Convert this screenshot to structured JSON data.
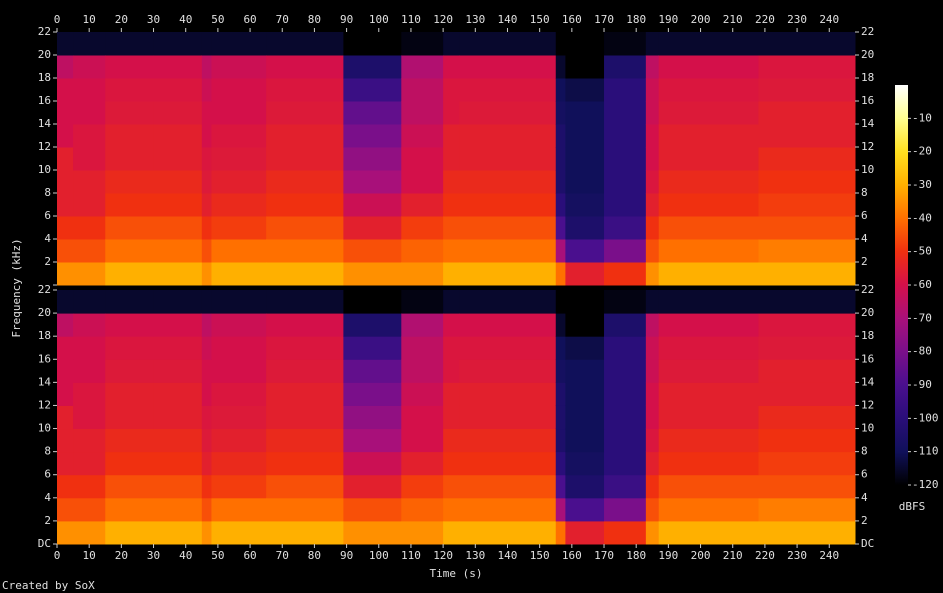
{
  "chart_data": {
    "type": "spectrogram",
    "xlabel": "Time (s)",
    "ylabel": "Frequency (kHz)",
    "zlabel": "dBFS",
    "footer": "Created by SoX",
    "xlim": [
      0,
      248
    ],
    "xticks": [
      0,
      10,
      20,
      30,
      40,
      50,
      60,
      70,
      80,
      90,
      100,
      110,
      120,
      130,
      140,
      150,
      160,
      170,
      180,
      190,
      200,
      210,
      220,
      230,
      240
    ],
    "ylim": [
      0,
      22
    ],
    "yticks": [
      {
        "value": 0,
        "label": "DC"
      },
      2,
      4,
      6,
      8,
      10,
      12,
      14,
      16,
      18,
      20,
      22
    ],
    "zlim": [
      -120,
      0
    ],
    "zticks": [
      -10,
      -20,
      -30,
      -40,
      -50,
      -60,
      -70,
      -80,
      -90,
      -100,
      -110,
      -120
    ],
    "colorscale": [
      {
        "value": -120,
        "color": "#000000"
      },
      {
        "value": -110,
        "color": "#10105a"
      },
      {
        "value": -100,
        "color": "#2a0e7a"
      },
      {
        "value": -90,
        "color": "#4a0f8e"
      },
      {
        "value": -80,
        "color": "#7a0f8a"
      },
      {
        "value": -70,
        "color": "#a8107a"
      },
      {
        "value": -60,
        "color": "#d4104a"
      },
      {
        "value": -50,
        "color": "#f03010"
      },
      {
        "value": -40,
        "color": "#ff7000"
      },
      {
        "value": -30,
        "color": "#ffb000"
      },
      {
        "value": -20,
        "color": "#ffe020"
      },
      {
        "value": -10,
        "color": "#ffff90"
      },
      {
        "value": 0,
        "color": "#ffffff"
      }
    ],
    "time_edges": [
      0,
      5,
      15,
      30,
      45,
      48,
      65,
      89,
      107,
      120,
      125,
      155,
      158,
      170,
      183,
      187,
      218,
      248
    ],
    "freq_edges": [
      0,
      2,
      4,
      6,
      8,
      10,
      12,
      14,
      16,
      18,
      20,
      22
    ],
    "z": [
      [
        -35,
        -45,
        -50,
        -55,
        -55,
        -55,
        -60,
        -60,
        -60,
        -65,
        -115
      ],
      [
        -35,
        -45,
        -50,
        -55,
        -55,
        -58,
        -58,
        -60,
        -60,
        -62,
        -115
      ],
      [
        -30,
        -40,
        -45,
        -50,
        -52,
        -55,
        -55,
        -57,
        -58,
        -60,
        -115
      ],
      [
        -30,
        -40,
        -45,
        -50,
        -52,
        -55,
        -55,
        -57,
        -58,
        -60,
        -115
      ],
      [
        -35,
        -45,
        -50,
        -55,
        -57,
        -58,
        -60,
        -60,
        -62,
        -65,
        -115
      ],
      [
        -30,
        -40,
        -48,
        -52,
        -55,
        -57,
        -58,
        -60,
        -60,
        -62,
        -115
      ],
      [
        -30,
        -40,
        -45,
        -50,
        -52,
        -55,
        -55,
        -57,
        -58,
        -60,
        -115
      ],
      [
        -35,
        -45,
        -55,
        -62,
        -70,
        -75,
        -80,
        -85,
        -95,
        -105,
        -120
      ],
      [
        -35,
        -42,
        -48,
        -55,
        -60,
        -60,
        -62,
        -65,
        -65,
        -68,
        -118
      ],
      [
        -30,
        -40,
        -45,
        -50,
        -52,
        -55,
        -55,
        -58,
        -58,
        -60,
        -115
      ],
      [
        -30,
        -40,
        -45,
        -50,
        -52,
        -55,
        -55,
        -57,
        -58,
        -60,
        -115
      ],
      [
        -40,
        -70,
        -90,
        -100,
        -105,
        -105,
        -105,
        -108,
        -110,
        -115,
        -120
      ],
      [
        -55,
        -90,
        -105,
        -108,
        -110,
        -110,
        -110,
        -110,
        -112,
        -120,
        -120
      ],
      [
        -50,
        -80,
        -95,
        -100,
        -100,
        -100,
        -100,
        -100,
        -100,
        -105,
        -118
      ],
      [
        -35,
        -45,
        -50,
        -55,
        -58,
        -60,
        -60,
        -62,
        -62,
        -65,
        -115
      ],
      [
        -30,
        -40,
        -45,
        -50,
        -52,
        -55,
        -55,
        -57,
        -58,
        -60,
        -115
      ],
      [
        -30,
        -38,
        -45,
        -48,
        -50,
        -52,
        -55,
        -55,
        -57,
        -58,
        -115
      ]
    ]
  }
}
